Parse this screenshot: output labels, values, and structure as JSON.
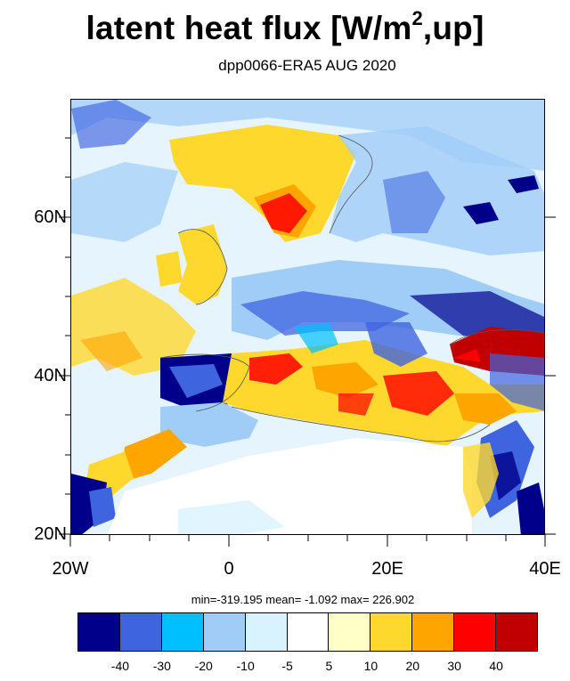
{
  "title": {
    "main": "latent heat flux [W/m",
    "sup": "2",
    "tail": ",up]"
  },
  "subtitle": "dpp0066-ERA5  AUG 2020",
  "axes": {
    "lat_labels": [
      "60N",
      "40N",
      "20N"
    ],
    "lon_labels": [
      "20W",
      "0",
      "20E",
      "40E"
    ]
  },
  "stats": "min=-319.195  mean=  -1.092  max= 226.902",
  "colorbar": {
    "colors": [
      "#00008b",
      "#3f64e0",
      "#00bfff",
      "#a0cdf7",
      "#d8f3fd",
      "#ffffff",
      "#ffffc8",
      "#ffd82e",
      "#ffa500",
      "#ff0000",
      "#c00000"
    ],
    "labels": [
      "-40",
      "-30",
      "-20",
      "-10",
      "-5",
      "5",
      "10",
      "20",
      "30",
      "40"
    ]
  },
  "map": {
    "lon_range": [
      -20,
      40
    ],
    "lat_range": [
      20,
      75
    ]
  }
}
